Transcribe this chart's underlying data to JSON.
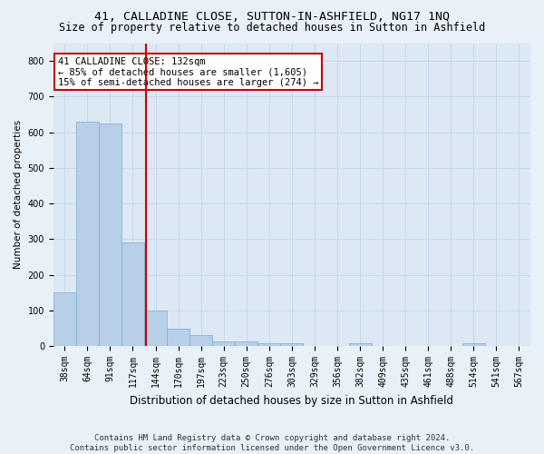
{
  "title": "41, CALLADINE CLOSE, SUTTON-IN-ASHFIELD, NG17 1NQ",
  "subtitle": "Size of property relative to detached houses in Sutton in Ashfield",
  "xlabel": "Distribution of detached houses by size in Sutton in Ashfield",
  "ylabel": "Number of detached properties",
  "footnote": "Contains HM Land Registry data © Crown copyright and database right 2024.\nContains public sector information licensed under the Open Government Licence v3.0.",
  "bin_labels": [
    "38sqm",
    "64sqm",
    "91sqm",
    "117sqm",
    "144sqm",
    "170sqm",
    "197sqm",
    "223sqm",
    "250sqm",
    "276sqm",
    "303sqm",
    "329sqm",
    "356sqm",
    "382sqm",
    "409sqm",
    "435sqm",
    "461sqm",
    "488sqm",
    "514sqm",
    "541sqm",
    "567sqm"
  ],
  "bar_values": [
    150,
    630,
    625,
    290,
    100,
    48,
    30,
    12,
    12,
    8,
    8,
    0,
    0,
    8,
    0,
    0,
    0,
    0,
    8,
    0,
    0
  ],
  "bar_color": "#b8cfe8",
  "bar_edge_color": "#7aadd4",
  "vline_x": 3.56,
  "vline_color": "#cc0000",
  "annotation_text": "41 CALLADINE CLOSE: 132sqm\n← 85% of detached houses are smaller (1,605)\n15% of semi-detached houses are larger (274) →",
  "annotation_box_color": "#cc0000",
  "ylim": [
    0,
    850
  ],
  "yticks": [
    0,
    100,
    200,
    300,
    400,
    500,
    600,
    700,
    800
  ],
  "grid_color": "#c8d8ec",
  "bg_color": "#dce8f4",
  "fig_bg_color": "#e8f0f8",
  "title_fontsize": 9.5,
  "subtitle_fontsize": 8.5,
  "xlabel_fontsize": 8.5,
  "ylabel_fontsize": 7.5,
  "tick_fontsize": 7,
  "annot_fontsize": 7.5,
  "footnote_fontsize": 6.5
}
